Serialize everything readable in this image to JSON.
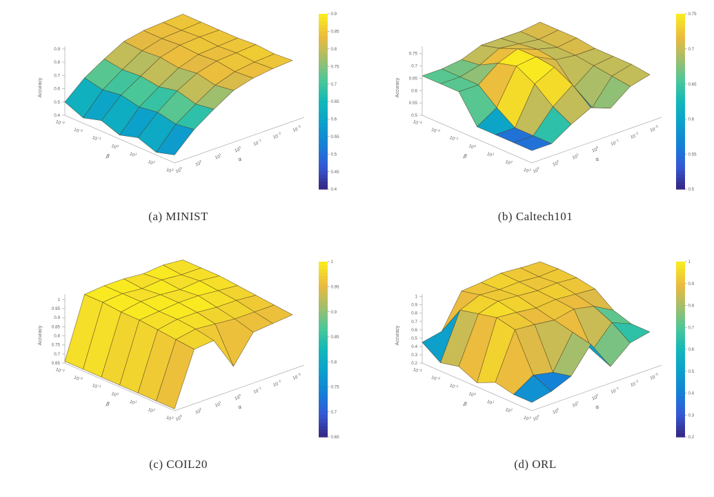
{
  "figure": {
    "background": "#ffffff",
    "zlabel": "Accuracy",
    "axis_labels": {
      "left": "β",
      "right": "α"
    },
    "colormap_stops": [
      {
        "t": 0.0,
        "color": "#352a87"
      },
      {
        "t": 0.12,
        "color": "#3558d6"
      },
      {
        "t": 0.25,
        "color": "#1482d7"
      },
      {
        "t": 0.38,
        "color": "#0ca1ca"
      },
      {
        "t": 0.5,
        "color": "#12b8b9"
      },
      {
        "t": 0.62,
        "color": "#4ac798"
      },
      {
        "t": 0.75,
        "color": "#a5be6b"
      },
      {
        "t": 0.87,
        "color": "#eaba3f"
      },
      {
        "t": 1.0,
        "color": "#f9e921"
      }
    ]
  },
  "chart_data": [
    {
      "type": "surface",
      "caption": "(a) MINIST",
      "dataset": "MINIST",
      "zlabel": "Accuracy",
      "xlabel": "β",
      "ylabel": "α",
      "beta_exponents": [
        -3,
        -2,
        -1,
        0,
        1,
        2,
        3
      ],
      "alpha_exponents": [
        3,
        2,
        1,
        0,
        -1,
        -2,
        -3
      ],
      "zlim": [
        0.4,
        0.92
      ],
      "zticks": [
        0.9,
        0.8,
        0.7,
        0.6,
        0.5,
        0.4
      ],
      "colorbar": {
        "min": 0.4,
        "max": 0.9,
        "ticks": [
          0.9,
          0.85,
          0.8,
          0.75,
          0.7,
          0.65,
          0.6,
          0.55,
          0.5,
          0.45,
          0.4
        ]
      },
      "z_grid": [
        [
          0.5,
          0.63,
          0.72,
          0.8,
          0.83,
          0.84,
          0.85
        ],
        [
          0.44,
          0.6,
          0.7,
          0.79,
          0.83,
          0.84,
          0.85
        ],
        [
          0.48,
          0.62,
          0.71,
          0.8,
          0.84,
          0.85,
          0.85
        ],
        [
          0.43,
          0.59,
          0.69,
          0.78,
          0.83,
          0.84,
          0.85
        ],
        [
          0.47,
          0.61,
          0.72,
          0.8,
          0.84,
          0.85,
          0.86
        ],
        [
          0.42,
          0.58,
          0.68,
          0.77,
          0.82,
          0.84,
          0.85
        ],
        [
          0.46,
          0.6,
          0.7,
          0.79,
          0.83,
          0.85,
          0.86
        ]
      ]
    },
    {
      "type": "surface",
      "caption": "(b) Caltech101",
      "dataset": "Caltech101",
      "zlabel": "Accuracy",
      "xlabel": "β",
      "ylabel": "α",
      "beta_exponents": [
        -3,
        -2,
        -1,
        0,
        1,
        2,
        3
      ],
      "alpha_exponents": [
        3,
        2,
        1,
        0,
        -1,
        -2,
        -3
      ],
      "zlim": [
        0.5,
        0.78
      ],
      "zticks": [
        0.75,
        0.7,
        0.65,
        0.6,
        0.55,
        0.5
      ],
      "colorbar": {
        "min": 0.5,
        "max": 0.75,
        "ticks": [
          0.75,
          0.7,
          0.65,
          0.6,
          0.55,
          0.5
        ]
      },
      "z_grid": [
        [
          0.66,
          0.66,
          0.67,
          0.7,
          0.7,
          0.7,
          0.71
        ],
        [
          0.66,
          0.66,
          0.68,
          0.72,
          0.71,
          0.7,
          0.71
        ],
        [
          0.66,
          0.66,
          0.72,
          0.75,
          0.72,
          0.7,
          0.71
        ],
        [
          0.55,
          0.6,
          0.74,
          0.75,
          0.71,
          0.7,
          0.7
        ],
        [
          0.55,
          0.55,
          0.7,
          0.74,
          0.63,
          0.69,
          0.7
        ],
        [
          0.55,
          0.55,
          0.64,
          0.7,
          0.58,
          0.68,
          0.7
        ],
        [
          0.55,
          0.55,
          0.6,
          0.64,
          0.61,
          0.67,
          0.69
        ]
      ]
    },
    {
      "type": "surface",
      "caption": "(c) COIL20",
      "dataset": "COIL20",
      "zlabel": "Accuracy",
      "xlabel": "β",
      "ylabel": "α",
      "beta_exponents": [
        -3,
        -2,
        -1,
        0,
        1,
        2,
        3
      ],
      "alpha_exponents": [
        3,
        2,
        1,
        0,
        -1,
        -2,
        -3
      ],
      "zlim": [
        0.65,
        1.03
      ],
      "zticks": [
        1,
        0.95,
        0.9,
        0.85,
        0.8,
        0.75,
        0.7,
        0.65
      ],
      "colorbar": {
        "min": 0.65,
        "max": 1,
        "ticks": [
          1,
          0.95,
          0.9,
          0.85,
          0.8,
          0.75,
          0.7,
          0.65
        ]
      },
      "z_grid": [
        [
          0.66,
          0.99,
          1.0,
          1.0,
          0.99,
          1.0,
          0.99
        ],
        [
          0.66,
          0.99,
          1.0,
          0.99,
          1.0,
          0.99,
          0.99
        ],
        [
          0.66,
          0.98,
          1.0,
          1.0,
          0.99,
          1.0,
          0.99
        ],
        [
          0.66,
          0.98,
          0.99,
          1.0,
          1.0,
          0.99,
          0.98
        ],
        [
          0.66,
          0.97,
          0.99,
          0.99,
          0.98,
          0.98,
          0.97
        ],
        [
          0.66,
          0.96,
          0.98,
          0.97,
          0.96,
          0.96,
          0.96
        ],
        [
          0.66,
          0.95,
          0.96,
          0.78,
          0.93,
          0.94,
          0.95
        ]
      ]
    },
    {
      "type": "surface",
      "caption": "(d) ORL",
      "dataset": "ORL",
      "zlabel": "Accuracy",
      "xlabel": "β",
      "ylabel": "α",
      "beta_exponents": [
        -3,
        -2,
        -1,
        0,
        1,
        2,
        3
      ],
      "alpha_exponents": [
        3,
        2,
        1,
        0,
        -1,
        -2,
        -3
      ],
      "zlim": [
        0.2,
        1.03
      ],
      "zticks": [
        1,
        0.9,
        0.8,
        0.7,
        0.6,
        0.5,
        0.4,
        0.3,
        0.2
      ],
      "colorbar": {
        "min": 0.2,
        "max": 1,
        "ticks": [
          1,
          0.9,
          0.8,
          0.7,
          0.6,
          0.5,
          0.4,
          0.3,
          0.2
        ]
      },
      "z_grid": [
        [
          0.45,
          0.5,
          0.9,
          0.92,
          0.95,
          0.93,
          0.92
        ],
        [
          0.3,
          0.85,
          0.95,
          0.93,
          0.94,
          0.92,
          0.93
        ],
        [
          0.35,
          0.9,
          0.97,
          0.95,
          0.93,
          0.94,
          0.92
        ],
        [
          0.25,
          0.95,
          0.93,
          0.9,
          0.92,
          0.9,
          0.88
        ],
        [
          0.35,
          0.9,
          0.88,
          0.85,
          0.9,
          0.85,
          0.72
        ],
        [
          0.3,
          0.45,
          0.4,
          0.8,
          0.5,
          0.75,
          0.65
        ],
        [
          0.3,
          0.35,
          0.45,
          0.75,
          0.4,
          0.6,
          0.65
        ]
      ]
    }
  ]
}
